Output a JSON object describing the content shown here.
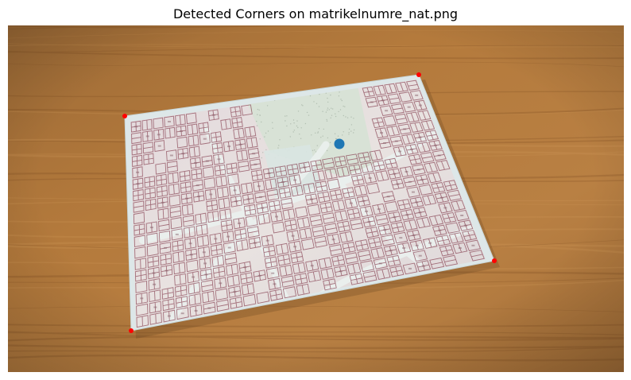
{
  "figure": {
    "title": "Detected Corners on matrikelnumre_nat.png"
  },
  "image": {
    "subject": "photo-of-cadastral-map-sheet-on-wooden-table",
    "colors": {
      "table": "#b47a3c",
      "table_dark": "#8a5a2a",
      "paper_border": "#dfe9ea",
      "map_bg": "#e7dede",
      "block_stroke": "#8c4a5a",
      "park": "#d8e3d6"
    }
  },
  "markers": {
    "corner_color": "#ff0000",
    "centroid_color": "#1f77b4",
    "corners": [
      {
        "name": "top-left"
      },
      {
        "name": "top-right"
      },
      {
        "name": "bottom-right"
      },
      {
        "name": "bottom-left"
      }
    ],
    "centroid": {
      "name": "centroid"
    }
  }
}
